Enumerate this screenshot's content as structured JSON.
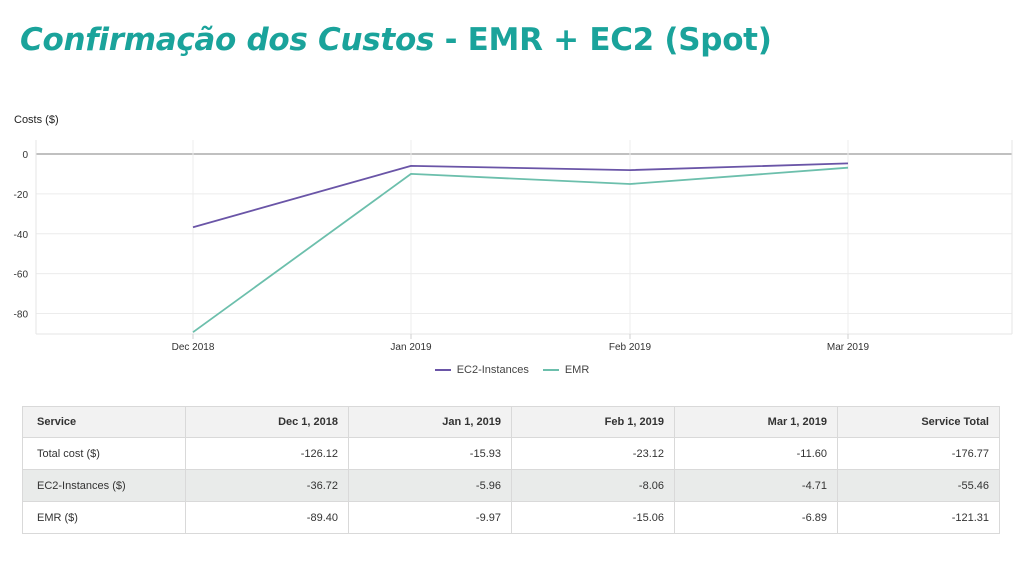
{
  "slide": {
    "title_italic": "Confirmação dos Custos",
    "title_rest": " - EMR + EC2 (Spot)"
  },
  "colors": {
    "title": "#1aa39b",
    "ec2": "#6a55a7",
    "emr": "#6cbfac"
  },
  "chart_data": {
    "type": "line",
    "ylabel": "Costs ($)",
    "categories": [
      "Dec 2018",
      "Jan 2019",
      "Feb 2019",
      "Mar 2019"
    ],
    "yticks": [
      0,
      -20,
      -40,
      -60,
      -80
    ],
    "ylim": [
      -90,
      0
    ],
    "grid": true,
    "legend_position": "bottom-center",
    "series": [
      {
        "name": "EC2-Instances",
        "color": "#6a55a7",
        "values": [
          -36.72,
          -5.96,
          -8.06,
          -4.71
        ]
      },
      {
        "name": "EMR",
        "color": "#6cbfac",
        "values": [
          -89.4,
          -9.97,
          -15.06,
          -6.89
        ]
      }
    ]
  },
  "table": {
    "headers": [
      "Service",
      "Dec 1, 2018",
      "Jan 1, 2019",
      "Feb 1, 2019",
      "Mar 1, 2019",
      "Service Total"
    ],
    "rows": [
      [
        "Total cost ($)",
        "-126.12",
        "-15.93",
        "-23.12",
        "-11.60",
        "-176.77"
      ],
      [
        "EC2-Instances ($)",
        "-36.72",
        "-5.96",
        "-8.06",
        "-4.71",
        "-55.46"
      ],
      [
        "EMR ($)",
        "-89.40",
        "-9.97",
        "-15.06",
        "-6.89",
        "-121.31"
      ]
    ]
  }
}
